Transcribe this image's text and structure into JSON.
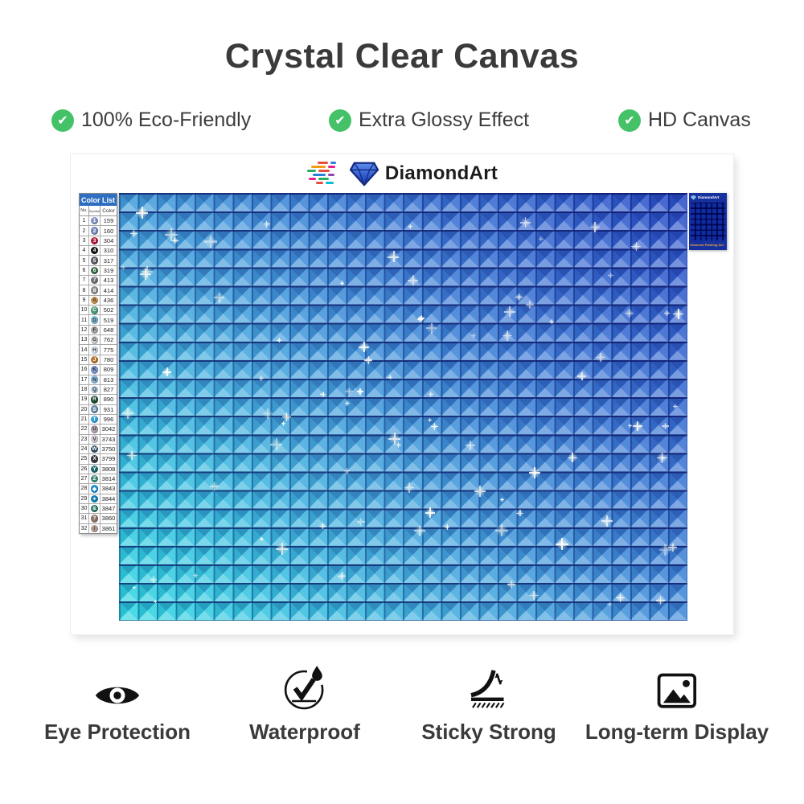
{
  "title": "Crystal Clear Canvas",
  "features": [
    {
      "label": "100% Eco-Friendly"
    },
    {
      "label": "Extra Glossy Effect"
    },
    {
      "label": "HD Canvas"
    }
  ],
  "colors": {
    "check_green": "#45c268",
    "table_header_blue": "#2f6fc2",
    "canvas_top_right": "#2b4fc9",
    "canvas_bottom_left": "#2bd7e2",
    "thumb_box_blue": "#16309e",
    "thumb_caption_orange": "#f2a53a"
  },
  "product": {
    "brand": "DiamondArt",
    "color_list": {
      "title": "Color List",
      "columns": [
        "No.",
        "Symbol",
        "Color"
      ],
      "rows": [
        {
          "no": "1",
          "symbol": "1",
          "code": "159",
          "color": "#8193c5"
        },
        {
          "no": "2",
          "symbol": "2",
          "code": "160",
          "color": "#7987bb"
        },
        {
          "no": "3",
          "symbol": "3",
          "code": "304",
          "color": "#b5163a"
        },
        {
          "no": "4",
          "symbol": "4",
          "code": "310",
          "color": "#141414"
        },
        {
          "no": "5",
          "symbol": "5",
          "code": "317",
          "color": "#5c5c64"
        },
        {
          "no": "6",
          "symbol": "6",
          "code": "319",
          "color": "#3a6b44"
        },
        {
          "no": "7",
          "symbol": "7",
          "code": "413",
          "color": "#6f6f74"
        },
        {
          "no": "8",
          "symbol": "8",
          "code": "414",
          "color": "#8c8c91"
        },
        {
          "no": "9",
          "symbol": "A",
          "code": "436",
          "color": "#cb9851"
        },
        {
          "no": "10",
          "symbol": "C",
          "code": "502",
          "color": "#4c9a77"
        },
        {
          "no": "11",
          "symbol": "D",
          "code": "519",
          "color": "#7fbcd9"
        },
        {
          "no": "12",
          "symbol": "F",
          "code": "648",
          "color": "#a9aaa4"
        },
        {
          "no": "13",
          "symbol": "G",
          "code": "762",
          "color": "#cfcfd1"
        },
        {
          "no": "14",
          "symbol": "H",
          "code": "775",
          "color": "#d9e6f2"
        },
        {
          "no": "15",
          "symbol": "J",
          "code": "780",
          "color": "#b5742c"
        },
        {
          "no": "16",
          "symbol": "K",
          "code": "809",
          "color": "#8298d4"
        },
        {
          "no": "17",
          "symbol": "N",
          "code": "813",
          "color": "#86b7da"
        },
        {
          "no": "18",
          "symbol": "Q",
          "code": "827",
          "color": "#b5d3e8"
        },
        {
          "no": "19",
          "symbol": "R",
          "code": "890",
          "color": "#1d4a32"
        },
        {
          "no": "20",
          "symbol": "S",
          "code": "931",
          "color": "#6c8ba6"
        },
        {
          "no": "21",
          "symbol": "T",
          "code": "996",
          "color": "#2fa3dc"
        },
        {
          "no": "22",
          "symbol": "U",
          "code": "3042",
          "color": "#b1a0af"
        },
        {
          "no": "23",
          "symbol": "V",
          "code": "3743",
          "color": "#d3cbd8"
        },
        {
          "no": "24",
          "symbol": "W",
          "code": "3750",
          "color": "#2c4a63"
        },
        {
          "no": "25",
          "symbol": "X",
          "code": "3799",
          "color": "#3a3a40"
        },
        {
          "no": "26",
          "symbol": "Y",
          "code": "3808",
          "color": "#1f6a70"
        },
        {
          "no": "27",
          "symbol": "Z",
          "code": "3814",
          "color": "#3d8a78"
        },
        {
          "no": "28",
          "symbol": "◆",
          "code": "3843",
          "color": "#1e8fd4"
        },
        {
          "no": "29",
          "symbol": "●",
          "code": "3844",
          "color": "#1280ba"
        },
        {
          "no": "30",
          "symbol": "&",
          "code": "3847",
          "color": "#2a7a68"
        },
        {
          "no": "31",
          "symbol": "?",
          "code": "3860",
          "color": "#907468"
        },
        {
          "no": "32",
          "symbol": "/",
          "code": "3861",
          "color": "#b59d92"
        }
      ]
    },
    "box_thumbnail": {
      "brand": "DiamondArt",
      "caption": "Diamond Painting Set"
    }
  },
  "bottom_features": [
    {
      "label": "Eye Protection",
      "icon": "eye-icon"
    },
    {
      "label": "Waterproof",
      "icon": "waterproof-icon"
    },
    {
      "label": "Sticky Strong",
      "icon": "sticky-strong-icon"
    },
    {
      "label": "Long-term Display",
      "icon": "long-term-display-icon"
    }
  ]
}
